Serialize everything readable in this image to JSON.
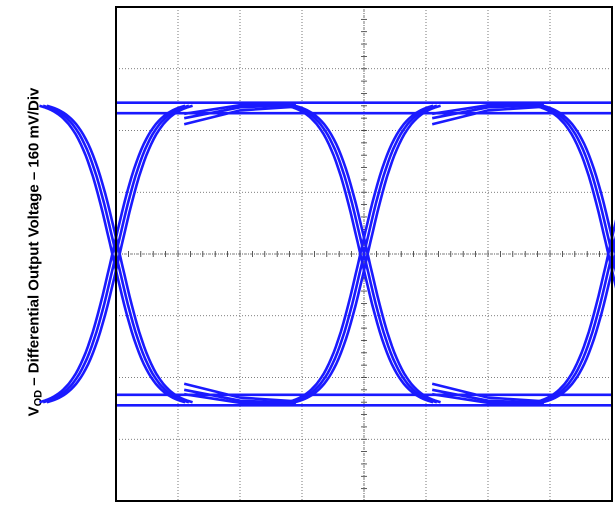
{
  "chart_data": {
    "type": "line",
    "title": "",
    "ylabel": {
      "prefix": "V",
      "subscript": "OD",
      "rest": " – Differential Output Voltage – 160 mV/Div"
    },
    "xlabel": "",
    "grid": true,
    "divisions": {
      "x": 8,
      "y": 8
    },
    "ylim": [
      -4,
      4
    ],
    "xlim": [
      0,
      8
    ],
    "eye": {
      "crossings_div": [
        0,
        4,
        8
      ],
      "high_level_div": 2.4,
      "low_level_div": -2.4,
      "trace_color": "#1a1aff"
    }
  }
}
